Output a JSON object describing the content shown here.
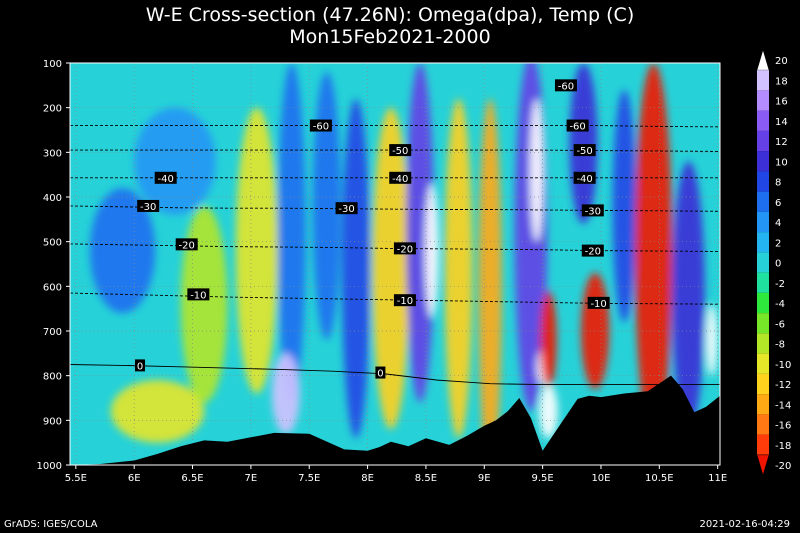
{
  "title_line1": "W-E Cross-section (47.26N): Omega(dpa), Temp (C)",
  "title_line2": "Mon15Feb2021-2000",
  "footer_left": "GrADS: IGES/COLA",
  "footer_right": "2021-02-16-04:29",
  "chart_data": {
    "type": "heatmap",
    "title": "W-E Cross-section (47.26N): Omega(dpa), Temp (C)",
    "subtitle": "Mon15Feb2021-2000",
    "x_range": [
      5.45,
      11.02
    ],
    "y_range": [
      100,
      1000
    ],
    "y_inverted": true,
    "x_ticks": [
      5.5,
      6,
      6.5,
      7,
      7.5,
      8,
      8.5,
      9,
      9.5,
      10,
      10.5,
      11
    ],
    "x_tick_labels": [
      "5.5E",
      "6E",
      "6.5E",
      "7E",
      "7.5E",
      "8E",
      "8.5E",
      "9E",
      "9.5E",
      "10E",
      "10.5E",
      "11E"
    ],
    "y_ticks": [
      100,
      200,
      300,
      400,
      500,
      600,
      700,
      800,
      900,
      1000
    ],
    "y_tick_labels": [
      "100",
      "200",
      "300",
      "400",
      "500",
      "600",
      "700",
      "800",
      "900",
      "1000"
    ],
    "grid": true,
    "colorbar": {
      "placement": "right",
      "levels": [
        20,
        18,
        16,
        14,
        12,
        10,
        8,
        6,
        4,
        2,
        0,
        -2,
        -4,
        -6,
        -8,
        -10,
        -12,
        -14,
        -16,
        -18,
        -20
      ],
      "labels": [
        "20",
        "18",
        "16",
        "14",
        "12",
        "10",
        "8",
        "6",
        "4",
        "2",
        "0",
        "-2",
        "-4",
        "-6",
        "-8",
        "-10",
        "-12",
        "-14",
        "-16",
        "-18",
        "-20"
      ],
      "colors": [
        "#ffffff",
        "#d2c2ff",
        "#b38cff",
        "#8b5cf5",
        "#6440e6",
        "#3c2fd6",
        "#2146e6",
        "#1e6ef0",
        "#2396f5",
        "#24b4f2",
        "#26d2d8",
        "#20e0a0",
        "#2ee83c",
        "#78e628",
        "#b4e628",
        "#e6e628",
        "#ffd21e",
        "#ffaa14",
        "#ff7814",
        "#ff3c0a",
        "#f01400"
      ]
    },
    "temperature_contours": [
      {
        "label": "-60",
        "p": [
          240,
          240,
          240,
          240,
          240,
          240,
          240,
          240,
          240,
          240,
          240,
          242,
          243
        ]
      },
      {
        "label": "-50",
        "p": [
          295,
          295,
          295,
          295,
          295,
          295,
          295,
          295,
          295,
          295,
          296,
          297,
          298
        ]
      },
      {
        "label": "-40",
        "p": [
          357,
          357,
          357,
          357,
          357,
          357,
          357,
          357,
          357,
          357,
          357,
          357,
          357
        ]
      },
      {
        "label": "-30",
        "p": [
          420,
          422,
          424,
          425,
          425,
          426,
          427,
          428,
          428,
          429,
          430,
          431,
          432
        ]
      },
      {
        "label": "-20",
        "p": [
          505,
          507,
          509,
          511,
          512,
          513,
          515,
          516,
          517,
          518,
          520,
          521,
          522
        ]
      },
      {
        "label": "-10",
        "p": [
          615,
          618,
          621,
          624,
          626,
          628,
          630,
          632,
          634,
          636,
          638,
          639,
          640
        ]
      },
      {
        "label": "0",
        "p": [
          775,
          777,
          780,
          783,
          786,
          790,
          796,
          810,
          818,
          820,
          820,
          820,
          820
        ]
      }
    ],
    "contour_x": [
      5.45,
      5.9,
      6.35,
      6.8,
      7.25,
      7.7,
      8.15,
      8.6,
      9.05,
      9.5,
      9.95,
      10.5,
      11.02
    ],
    "contour_labels": [
      {
        "text": "-60",
        "x": 7.6,
        "p": 240
      },
      {
        "text": "-60",
        "x": 9.8,
        "p": 240
      },
      {
        "text": "-60",
        "x": 9.7,
        "p": 150
      },
      {
        "text": "-50",
        "x": 8.28,
        "p": 295
      },
      {
        "text": "-50",
        "x": 9.86,
        "p": 295
      },
      {
        "text": "-40",
        "x": 6.27,
        "p": 357
      },
      {
        "text": "-40",
        "x": 8.28,
        "p": 357
      },
      {
        "text": "-40",
        "x": 9.86,
        "p": 357
      },
      {
        "text": "-30",
        "x": 6.12,
        "p": 420
      },
      {
        "text": "-30",
        "x": 7.82,
        "p": 425
      },
      {
        "text": "-30",
        "x": 9.93,
        "p": 430
      },
      {
        "text": "-20",
        "x": 6.45,
        "p": 506
      },
      {
        "text": "-20",
        "x": 8.32,
        "p": 515
      },
      {
        "text": "-20",
        "x": 9.93,
        "p": 520
      },
      {
        "text": "-10",
        "x": 6.55,
        "p": 618
      },
      {
        "text": "-10",
        "x": 8.32,
        "p": 631
      },
      {
        "text": "-10",
        "x": 9.98,
        "p": 637
      },
      {
        "text": "0",
        "x": 6.05,
        "p": 777
      },
      {
        "text": "0",
        "x": 8.11,
        "p": 793
      }
    ],
    "terrain": {
      "x": [
        5.45,
        5.7,
        6.0,
        6.2,
        6.4,
        6.6,
        6.8,
        7.0,
        7.2,
        7.5,
        7.8,
        8.0,
        8.1,
        8.2,
        8.35,
        8.5,
        8.7,
        8.85,
        9.0,
        9.1,
        9.2,
        9.3,
        9.4,
        9.5,
        9.65,
        9.8,
        9.9,
        10.0,
        10.2,
        10.4,
        10.6,
        10.7,
        10.8,
        10.9,
        11.02
      ],
      "p": [
        1000,
        998,
        990,
        975,
        958,
        945,
        948,
        938,
        928,
        930,
        965,
        968,
        960,
        948,
        958,
        940,
        955,
        935,
        912,
        900,
        880,
        850,
        895,
        968,
        910,
        852,
        845,
        848,
        840,
        835,
        800,
        830,
        882,
        870,
        845
      ]
    },
    "omega_anomalies": [
      {
        "x": 5.9,
        "p": 520,
        "rx": 0.28,
        "rp": 140,
        "value": 6
      },
      {
        "x": 6.35,
        "p": 320,
        "rx": 0.35,
        "rp": 120,
        "value": 4
      },
      {
        "x": 6.2,
        "p": 880,
        "rx": 0.4,
        "rp": 70,
        "value": -10
      },
      {
        "x": 6.6,
        "p": 640,
        "rx": 0.2,
        "rp": 220,
        "value": -8
      },
      {
        "x": 7.05,
        "p": 520,
        "rx": 0.18,
        "rp": 320,
        "value": -10
      },
      {
        "x": 7.35,
        "p": 480,
        "rx": 0.12,
        "rp": 380,
        "value": 6
      },
      {
        "x": 7.3,
        "p": 840,
        "rx": 0.12,
        "rp": 90,
        "value": 18
      },
      {
        "x": 7.65,
        "p": 420,
        "rx": 0.12,
        "rp": 300,
        "value": 6
      },
      {
        "x": 7.9,
        "p": 560,
        "rx": 0.12,
        "rp": 380,
        "value": 8
      },
      {
        "x": 8.2,
        "p": 560,
        "rx": 0.16,
        "rp": 360,
        "value": -12
      },
      {
        "x": 8.45,
        "p": 480,
        "rx": 0.12,
        "rp": 380,
        "value": 12
      },
      {
        "x": 8.55,
        "p": 520,
        "rx": 0.06,
        "rp": 150,
        "value": 20
      },
      {
        "x": 8.78,
        "p": 560,
        "rx": 0.12,
        "rp": 380,
        "value": -12
      },
      {
        "x": 9.05,
        "p": 600,
        "rx": 0.1,
        "rp": 420,
        "value": -14
      },
      {
        "x": 9.4,
        "p": 480,
        "rx": 0.14,
        "rp": 400,
        "value": 12
      },
      {
        "x": 9.45,
        "p": 340,
        "rx": 0.06,
        "rp": 160,
        "value": 20
      },
      {
        "x": 9.5,
        "p": 780,
        "rx": 0.05,
        "rp": 40,
        "value": 20
      },
      {
        "x": 9.55,
        "p": 720,
        "rx": 0.07,
        "rp": 110,
        "value": -20
      },
      {
        "x": 9.55,
        "p": 880,
        "rx": 0.08,
        "rp": 60,
        "value": 20
      },
      {
        "x": 9.85,
        "p": 280,
        "rx": 0.12,
        "rp": 180,
        "value": 10
      },
      {
        "x": 9.95,
        "p": 700,
        "rx": 0.12,
        "rp": 130,
        "value": -20
      },
      {
        "x": 10.2,
        "p": 420,
        "rx": 0.1,
        "rp": 260,
        "value": 8
      },
      {
        "x": 10.45,
        "p": 520,
        "rx": 0.16,
        "rp": 420,
        "value": -20
      },
      {
        "x": 10.75,
        "p": 620,
        "rx": 0.14,
        "rp": 300,
        "value": 10
      },
      {
        "x": 10.95,
        "p": 720,
        "rx": 0.05,
        "rp": 80,
        "value": 20
      }
    ]
  }
}
